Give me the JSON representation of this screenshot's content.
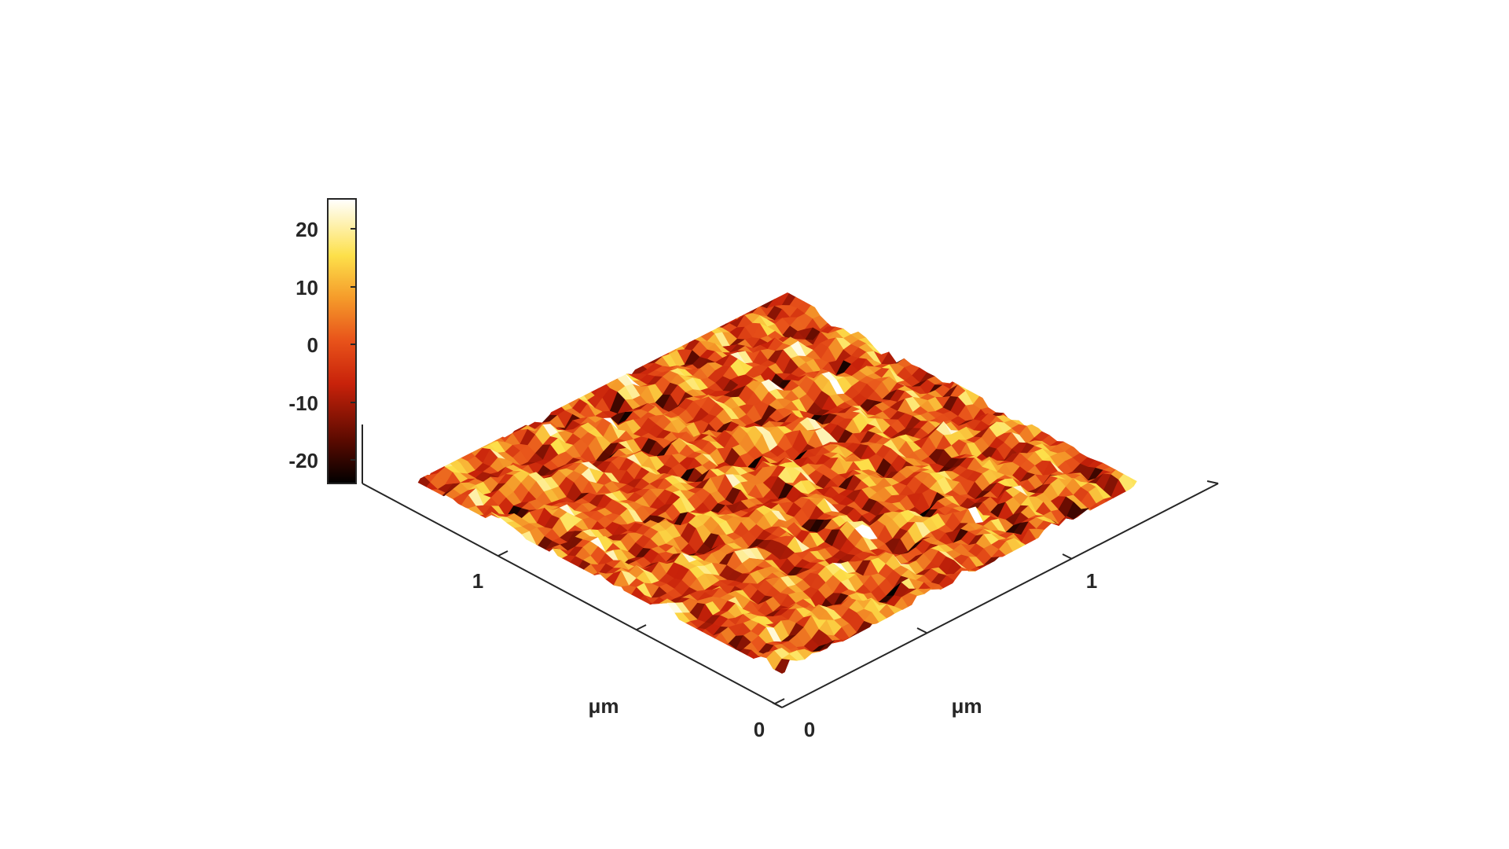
{
  "chart_data": {
    "type": "surface",
    "colormap": "hot",
    "colorbar": {
      "ticks": [
        -20,
        -10,
        0,
        10,
        20
      ],
      "tick_labels": [
        "-20",
        "-10",
        "0",
        "10",
        "20"
      ],
      "range": [
        -24.5,
        25
      ]
    },
    "x_axis": {
      "label": "μm",
      "ticks": [
        0,
        1
      ],
      "tick_labels": [
        "0",
        "1"
      ],
      "range": [
        0,
        2
      ]
    },
    "y_axis": {
      "label": "μm",
      "ticks": [
        0,
        1
      ],
      "tick_labels": [
        "0",
        "1"
      ],
      "range": [
        0,
        2
      ]
    },
    "z_range": [
      -24.5,
      25
    ],
    "grid": false,
    "colors": {
      "low": "#0a0000",
      "mid": "#e8421a",
      "high": "#ffffe0"
    }
  },
  "labels": {
    "left_axis_label": "μm",
    "right_axis_label": "μm",
    "left_tick_1": "1",
    "left_tick_0": "0",
    "right_tick_1": "1",
    "right_tick_0": "0",
    "cb_20": "20",
    "cb_10": "10",
    "cb_0": "0",
    "cb_m10": "-10",
    "cb_m20": "-20"
  }
}
